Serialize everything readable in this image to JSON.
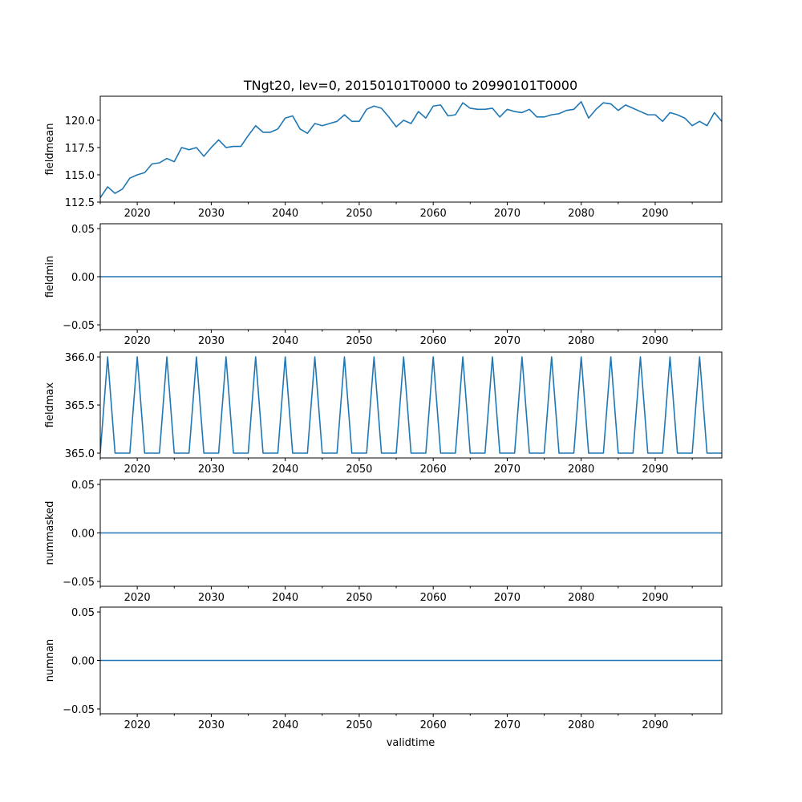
{
  "chart_data": {
    "type": "line",
    "title": "TNgt20, lev=0, 20150101T0000 to 20990101T0000",
    "xlabel": "validtime",
    "series_color": "#1f77b4",
    "x": [
      2015,
      2016,
      2017,
      2018,
      2019,
      2020,
      2021,
      2022,
      2023,
      2024,
      2025,
      2026,
      2027,
      2028,
      2029,
      2030,
      2031,
      2032,
      2033,
      2034,
      2035,
      2036,
      2037,
      2038,
      2039,
      2040,
      2041,
      2042,
      2043,
      2044,
      2045,
      2046,
      2047,
      2048,
      2049,
      2050,
      2051,
      2052,
      2053,
      2054,
      2055,
      2056,
      2057,
      2058,
      2059,
      2060,
      2061,
      2062,
      2063,
      2064,
      2065,
      2066,
      2067,
      2068,
      2069,
      2070,
      2071,
      2072,
      2073,
      2074,
      2075,
      2076,
      2077,
      2078,
      2079,
      2080,
      2081,
      2082,
      2083,
      2084,
      2085,
      2086,
      2087,
      2088,
      2089,
      2090,
      2091,
      2092,
      2093,
      2094,
      2095,
      2096,
      2097,
      2098,
      2099
    ],
    "xlim": [
      2015,
      2099
    ],
    "xticks": [
      2020,
      2030,
      2040,
      2050,
      2060,
      2070,
      2080,
      2090
    ],
    "xtick_labels": [
      "2020",
      "2030",
      "2040",
      "2050",
      "2060",
      "2070",
      "2080",
      "2090"
    ],
    "panels": [
      {
        "ylabel": "fieldmean",
        "ylim": [
          112.5,
          122.2
        ],
        "yticks": [
          112.5,
          115.0,
          117.5,
          120.0
        ],
        "ytick_labels": [
          "112.5",
          "115.0",
          "117.5",
          "120.0"
        ],
        "values": [
          112.9,
          113.9,
          113.3,
          113.7,
          114.7,
          115.0,
          115.2,
          116.0,
          116.1,
          116.5,
          116.2,
          117.5,
          117.3,
          117.5,
          116.7,
          117.5,
          118.2,
          117.5,
          117.6,
          117.6,
          118.6,
          119.5,
          118.9,
          118.9,
          119.2,
          120.2,
          120.4,
          119.2,
          118.8,
          119.7,
          119.5,
          119.7,
          119.9,
          120.5,
          119.9,
          119.9,
          121.0,
          121.3,
          121.1,
          120.3,
          119.4,
          120.0,
          119.7,
          120.8,
          120.2,
          121.3,
          121.4,
          120.4,
          120.5,
          121.6,
          121.1,
          121.0,
          121.0,
          121.1,
          120.3,
          121.0,
          120.8,
          120.7,
          121.0,
          120.3,
          120.3,
          120.5,
          120.6,
          120.9,
          121.0,
          121.7,
          120.2,
          121.0,
          121.6,
          121.5,
          120.9,
          121.4,
          121.1,
          120.8,
          120.5,
          120.5,
          119.9,
          120.7,
          120.5,
          120.2,
          119.5,
          119.9,
          119.5,
          120.7,
          119.9
        ]
      },
      {
        "ylabel": "fieldmin",
        "ylim": [
          -0.055,
          0.055
        ],
        "yticks": [
          -0.05,
          0.0,
          0.05
        ],
        "ytick_labels": [
          "−0.05",
          "0.00",
          "0.05"
        ],
        "values": [
          0,
          0,
          0,
          0,
          0,
          0,
          0,
          0,
          0,
          0,
          0,
          0,
          0,
          0,
          0,
          0,
          0,
          0,
          0,
          0,
          0,
          0,
          0,
          0,
          0,
          0,
          0,
          0,
          0,
          0,
          0,
          0,
          0,
          0,
          0,
          0,
          0,
          0,
          0,
          0,
          0,
          0,
          0,
          0,
          0,
          0,
          0,
          0,
          0,
          0,
          0,
          0,
          0,
          0,
          0,
          0,
          0,
          0,
          0,
          0,
          0,
          0,
          0,
          0,
          0,
          0,
          0,
          0,
          0,
          0,
          0,
          0,
          0,
          0,
          0,
          0,
          0,
          0,
          0,
          0,
          0,
          0,
          0,
          0,
          0
        ]
      },
      {
        "ylabel": "fieldmax",
        "ylim": [
          364.95,
          366.05
        ],
        "yticks": [
          365.0,
          365.5,
          366.0
        ],
        "ytick_labels": [
          "365.0",
          "365.5",
          "366.0"
        ],
        "values": [
          365,
          366,
          365,
          365,
          365,
          366,
          365,
          365,
          365,
          366,
          365,
          365,
          365,
          366,
          365,
          365,
          365,
          366,
          365,
          365,
          365,
          366,
          365,
          365,
          365,
          366,
          365,
          365,
          365,
          366,
          365,
          365,
          365,
          366,
          365,
          365,
          365,
          366,
          365,
          365,
          365,
          366,
          365,
          365,
          365,
          366,
          365,
          365,
          365,
          366,
          365,
          365,
          365,
          366,
          365,
          365,
          365,
          366,
          365,
          365,
          365,
          366,
          365,
          365,
          365,
          366,
          365,
          365,
          365,
          366,
          365,
          365,
          365,
          366,
          365,
          365,
          365,
          366,
          365,
          365,
          365,
          366,
          365,
          365,
          365
        ]
      },
      {
        "ylabel": "nummasked",
        "ylim": [
          -0.055,
          0.055
        ],
        "yticks": [
          -0.05,
          0.0,
          0.05
        ],
        "ytick_labels": [
          "−0.05",
          "0.00",
          "0.05"
        ],
        "values": [
          0,
          0,
          0,
          0,
          0,
          0,
          0,
          0,
          0,
          0,
          0,
          0,
          0,
          0,
          0,
          0,
          0,
          0,
          0,
          0,
          0,
          0,
          0,
          0,
          0,
          0,
          0,
          0,
          0,
          0,
          0,
          0,
          0,
          0,
          0,
          0,
          0,
          0,
          0,
          0,
          0,
          0,
          0,
          0,
          0,
          0,
          0,
          0,
          0,
          0,
          0,
          0,
          0,
          0,
          0,
          0,
          0,
          0,
          0,
          0,
          0,
          0,
          0,
          0,
          0,
          0,
          0,
          0,
          0,
          0,
          0,
          0,
          0,
          0,
          0,
          0,
          0,
          0,
          0,
          0,
          0,
          0,
          0,
          0,
          0
        ]
      },
      {
        "ylabel": "numnan",
        "ylim": [
          -0.055,
          0.055
        ],
        "yticks": [
          -0.05,
          0.0,
          0.05
        ],
        "ytick_labels": [
          "−0.05",
          "0.00",
          "0.05"
        ],
        "values": [
          0,
          0,
          0,
          0,
          0,
          0,
          0,
          0,
          0,
          0,
          0,
          0,
          0,
          0,
          0,
          0,
          0,
          0,
          0,
          0,
          0,
          0,
          0,
          0,
          0,
          0,
          0,
          0,
          0,
          0,
          0,
          0,
          0,
          0,
          0,
          0,
          0,
          0,
          0,
          0,
          0,
          0,
          0,
          0,
          0,
          0,
          0,
          0,
          0,
          0,
          0,
          0,
          0,
          0,
          0,
          0,
          0,
          0,
          0,
          0,
          0,
          0,
          0,
          0,
          0,
          0,
          0,
          0,
          0,
          0,
          0,
          0,
          0,
          0,
          0,
          0,
          0,
          0,
          0,
          0,
          0,
          0,
          0,
          0,
          0
        ]
      }
    ]
  }
}
